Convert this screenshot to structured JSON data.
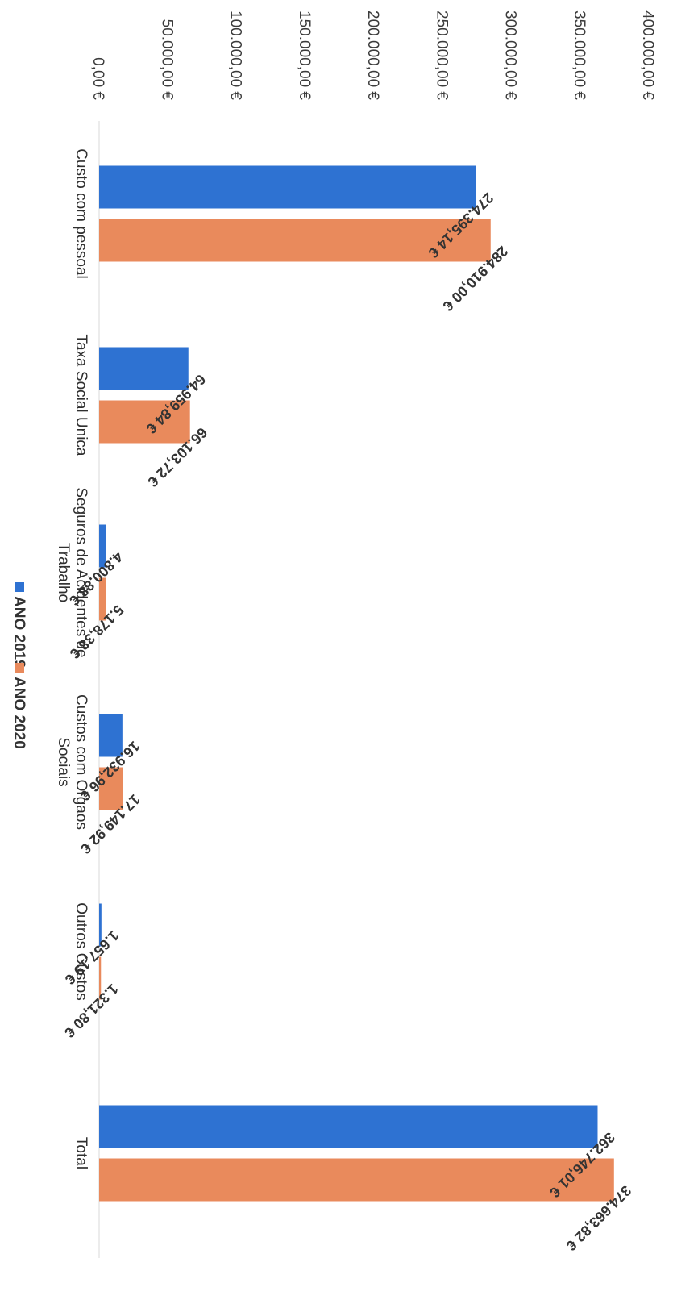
{
  "chart_data": {
    "type": "bar",
    "orientation": "rotated-90-clockwise",
    "categories": [
      [
        "Custo com pessoal"
      ],
      [
        "Taxa Social Unica"
      ],
      [
        "Seguros de Acidentes de",
        "Trabalho"
      ],
      [
        "Custos com Orgaos",
        "Sociais"
      ],
      [
        "Outros Custos"
      ],
      [
        "Total"
      ]
    ],
    "series": [
      {
        "name": "ANO 2019",
        "color": "#2e72d2",
        "values": [
          274395.14,
          64959.84,
          4800.88,
          16932.96,
          1657.19,
          362746.01
        ],
        "labels": [
          "274.395,14 €",
          "64.959,84 €",
          "4.800,88 €",
          "16.932,96 €",
          "1.657,19 €",
          "362.746,01 €"
        ]
      },
      {
        "name": "ANO 2020",
        "color": "#e98a5c",
        "values": [
          284910.0,
          66103.72,
          5178.38,
          17149.92,
          1321.8,
          374663.82
        ],
        "labels": [
          "284.910,00 €",
          "66.103,72 €",
          "5.178,38 €",
          "17.149,92 €",
          "1.321,80 €",
          "374.663,82 €"
        ]
      }
    ],
    "ylim": [
      0,
      400000
    ],
    "yticks": [
      0,
      50000,
      100000,
      150000,
      200000,
      250000,
      300000,
      350000,
      400000
    ],
    "ytick_labels": [
      "0,00 €",
      "50.000,00 €",
      "100.000,00 €",
      "150.000,00 €",
      "200.000,00 €",
      "250.000,00 €",
      "300.000,00 €",
      "350.000,00 €",
      "400.000,00 €"
    ],
    "grid": false,
    "legend_position": "bottom"
  }
}
